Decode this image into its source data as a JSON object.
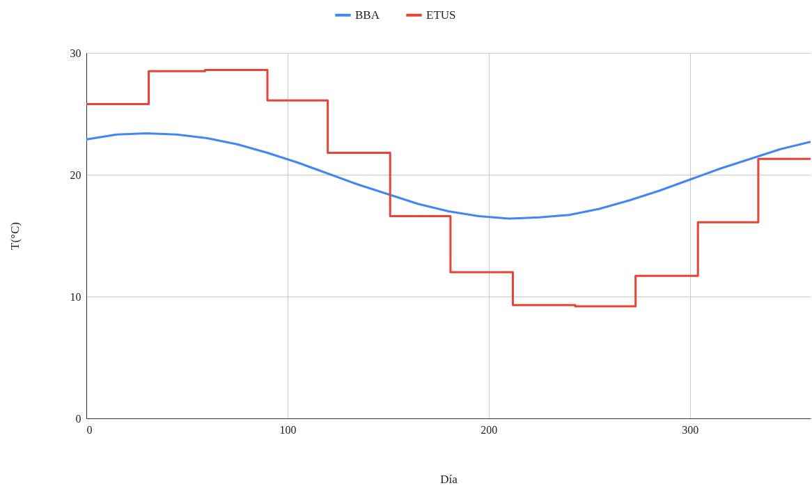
{
  "chart_data": {
    "type": "line",
    "xlabel": "Día",
    "ylabel": "T(°C)",
    "xlim": [
      0,
      360
    ],
    "xticks": [
      0,
      100,
      200,
      300
    ],
    "ylim": [
      0,
      30
    ],
    "yticks": [
      0,
      10,
      20,
      30
    ],
    "grid": true,
    "legend": "top",
    "line_style": "solid",
    "marker": "none",
    "series": [
      {
        "name": "BBA",
        "color": "#4285f4",
        "x": [
          0,
          15,
          30,
          45,
          60,
          75,
          90,
          105,
          120,
          135,
          150,
          165,
          180,
          195,
          210,
          225,
          240,
          255,
          270,
          285,
          300,
          315,
          330,
          345,
          360
        ],
        "values": [
          22.9,
          23.3,
          23.4,
          23.3,
          23.0,
          22.5,
          21.8,
          21.0,
          20.1,
          19.2,
          18.4,
          17.6,
          17.0,
          16.6,
          16.4,
          16.5,
          16.7,
          17.2,
          17.9,
          18.7,
          19.6,
          20.5,
          21.3,
          22.1,
          22.7
        ]
      },
      {
        "name": "ETUS",
        "type": "step",
        "color": "#ea4335",
        "x": [
          0,
          31,
          59,
          90,
          120,
          151,
          181,
          212,
          243,
          273,
          304,
          334,
          360
        ],
        "values": [
          25.8,
          28.5,
          28.6,
          26.1,
          21.8,
          16.6,
          12.0,
          9.3,
          9.2,
          11.7,
          16.1,
          21.3,
          21.3
        ]
      }
    ]
  }
}
